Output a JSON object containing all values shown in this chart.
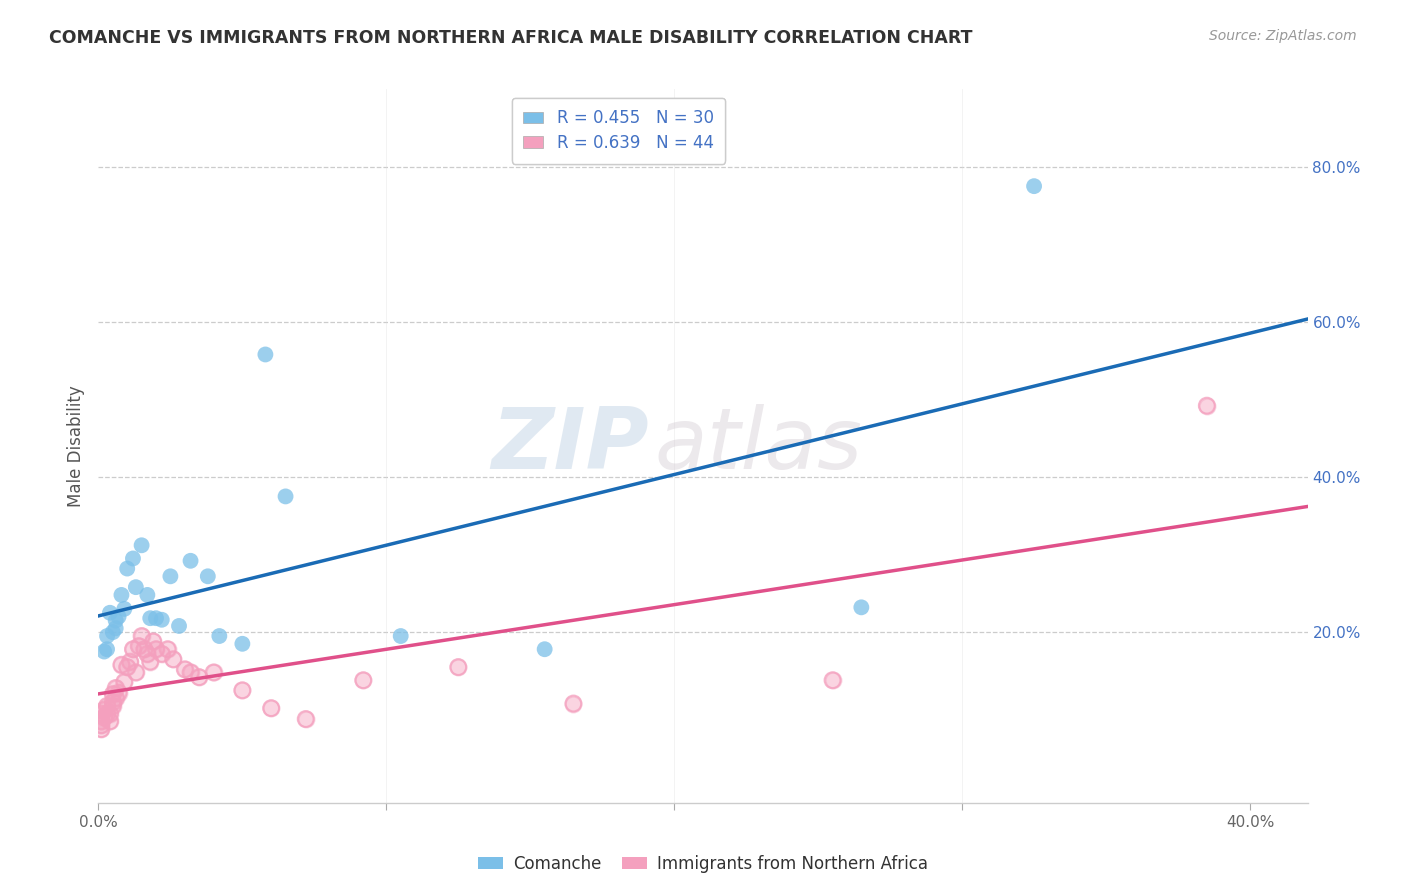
{
  "title": "COMANCHE VS IMMIGRANTS FROM NORTHERN AFRICA MALE DISABILITY CORRELATION CHART",
  "source": "Source: ZipAtlas.com",
  "ylabel": "Male Disability",
  "xlim": [
    0.0,
    0.42
  ],
  "ylim": [
    -0.02,
    0.9
  ],
  "color_blue": "#7bbfe8",
  "color_pink": "#f4a0be",
  "line_color_blue": "#1a6bb5",
  "line_color_pink": "#e0508a",
  "legend_r1": "R = 0.455   N = 30",
  "legend_r2": "R = 0.639   N = 44",
  "legend_label1": "Comanche",
  "legend_label2": "Immigrants from Northern Africa",
  "watermark_zip": "ZIP",
  "watermark_atlas": "atlas",
  "comanche_x": [
    0.002,
    0.003,
    0.003,
    0.004,
    0.005,
    0.006,
    0.006,
    0.007,
    0.008,
    0.009,
    0.01,
    0.012,
    0.013,
    0.015,
    0.017,
    0.018,
    0.02,
    0.022,
    0.025,
    0.028,
    0.032,
    0.038,
    0.042,
    0.05,
    0.058,
    0.065,
    0.105,
    0.155,
    0.265,
    0.325
  ],
  "comanche_y": [
    0.175,
    0.195,
    0.178,
    0.225,
    0.2,
    0.215,
    0.205,
    0.22,
    0.248,
    0.23,
    0.282,
    0.295,
    0.258,
    0.312,
    0.248,
    0.218,
    0.218,
    0.216,
    0.272,
    0.208,
    0.292,
    0.272,
    0.195,
    0.185,
    0.558,
    0.375,
    0.195,
    0.178,
    0.232,
    0.775
  ],
  "immigrants_x": [
    0.001,
    0.001,
    0.001,
    0.001,
    0.002,
    0.002,
    0.003,
    0.003,
    0.004,
    0.004,
    0.005,
    0.005,
    0.005,
    0.006,
    0.006,
    0.007,
    0.008,
    0.009,
    0.01,
    0.011,
    0.012,
    0.013,
    0.014,
    0.015,
    0.016,
    0.017,
    0.018,
    0.019,
    0.02,
    0.022,
    0.024,
    0.026,
    0.03,
    0.032,
    0.035,
    0.04,
    0.05,
    0.06,
    0.072,
    0.092,
    0.125,
    0.165,
    0.255,
    0.385
  ],
  "immigrants_y": [
    0.095,
    0.085,
    0.08,
    0.075,
    0.1,
    0.09,
    0.095,
    0.105,
    0.085,
    0.095,
    0.11,
    0.105,
    0.12,
    0.115,
    0.128,
    0.122,
    0.158,
    0.136,
    0.155,
    0.162,
    0.178,
    0.148,
    0.182,
    0.195,
    0.178,
    0.172,
    0.162,
    0.188,
    0.178,
    0.172,
    0.178,
    0.165,
    0.152,
    0.148,
    0.142,
    0.148,
    0.125,
    0.102,
    0.088,
    0.138,
    0.155,
    0.108,
    0.138,
    0.492
  ]
}
